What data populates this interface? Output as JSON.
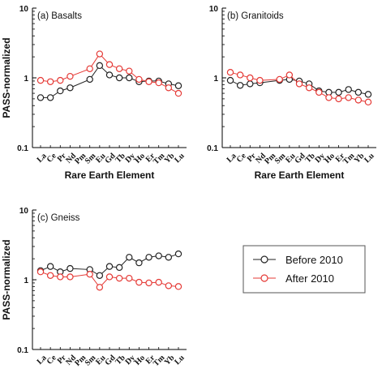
{
  "chart_data": [
    {
      "type": "line",
      "panel_label": "(a) Basalts",
      "xlabel": "Rare Earth Element",
      "ylabel": "PASS-normalized",
      "y_scale": "log",
      "ylim": [
        0.1,
        10
      ],
      "y_ticks": [
        "0.1",
        "1",
        "10"
      ],
      "categories": [
        "La",
        "Ce",
        "Pr",
        "Nd",
        "Pm",
        "Sm",
        "Eu",
        "Gd",
        "Tb",
        "Dy",
        "Ho",
        "Er",
        "Tm",
        "Yb",
        "Lu"
      ],
      "series": [
        {
          "name": "Before 2010",
          "color": "#222222",
          "values": [
            0.52,
            0.52,
            0.65,
            0.72,
            null,
            0.95,
            1.5,
            1.1,
            1.0,
            1.0,
            0.88,
            0.9,
            0.9,
            0.82,
            0.77
          ]
        },
        {
          "name": "After 2010",
          "color": "#e53935",
          "values": [
            0.92,
            0.88,
            0.92,
            1.05,
            null,
            1.35,
            2.2,
            1.55,
            1.35,
            1.25,
            0.95,
            0.88,
            0.85,
            0.72,
            0.6
          ]
        }
      ]
    },
    {
      "type": "line",
      "panel_label": "(b) Granitoids",
      "xlabel": "Rare Earth Element",
      "ylabel": "",
      "y_scale": "log",
      "ylim": [
        0.1,
        10
      ],
      "y_ticks": [
        "0.1",
        "1",
        "10"
      ],
      "categories": [
        "La",
        "Ce",
        "Pr",
        "Nd",
        "Pm",
        "Sm",
        "Eu",
        "Gd",
        "Tb",
        "Dy",
        "Ho",
        "Er",
        "Tm",
        "Yb",
        "Lu"
      ],
      "series": [
        {
          "name": "Before 2010",
          "color": "#222222",
          "values": [
            0.92,
            0.78,
            0.82,
            0.85,
            null,
            0.92,
            0.95,
            0.9,
            0.82,
            0.65,
            0.62,
            0.62,
            0.68,
            0.62,
            0.58
          ]
        },
        {
          "name": "After 2010",
          "color": "#e53935",
          "values": [
            1.2,
            1.1,
            1.0,
            0.92,
            null,
            0.95,
            1.1,
            0.82,
            0.72,
            0.62,
            0.52,
            0.5,
            0.52,
            0.48,
            0.45
          ]
        }
      ]
    },
    {
      "type": "line",
      "panel_label": "(c) Gneiss",
      "xlabel": "",
      "ylabel": "PASS-normalized",
      "y_scale": "log",
      "ylim": [
        0.1,
        10
      ],
      "y_ticks": [
        "0.1",
        "1",
        "10"
      ],
      "categories": [
        "La",
        "Ce",
        "Pr",
        "Nd",
        "Pm",
        "Sm",
        "Eu",
        "Gd",
        "Tb",
        "Dy",
        "Ho",
        "Er",
        "Tm",
        "Yb",
        "Lu"
      ],
      "series": [
        {
          "name": "Before 2010",
          "color": "#222222",
          "values": [
            1.35,
            1.55,
            1.3,
            1.45,
            null,
            1.4,
            1.15,
            1.55,
            1.5,
            2.1,
            1.75,
            2.1,
            2.2,
            2.1,
            2.35
          ]
        },
        {
          "name": "After 2010",
          "color": "#e53935",
          "values": [
            1.3,
            1.15,
            1.1,
            1.1,
            null,
            1.2,
            0.78,
            1.1,
            1.05,
            1.05,
            0.92,
            0.9,
            0.92,
            0.82,
            0.8
          ]
        }
      ]
    }
  ],
  "legend": {
    "position": "right",
    "entries": [
      {
        "label": "Before 2010",
        "color": "#222222"
      },
      {
        "label": "After 2010",
        "color": "#e53935"
      }
    ]
  }
}
